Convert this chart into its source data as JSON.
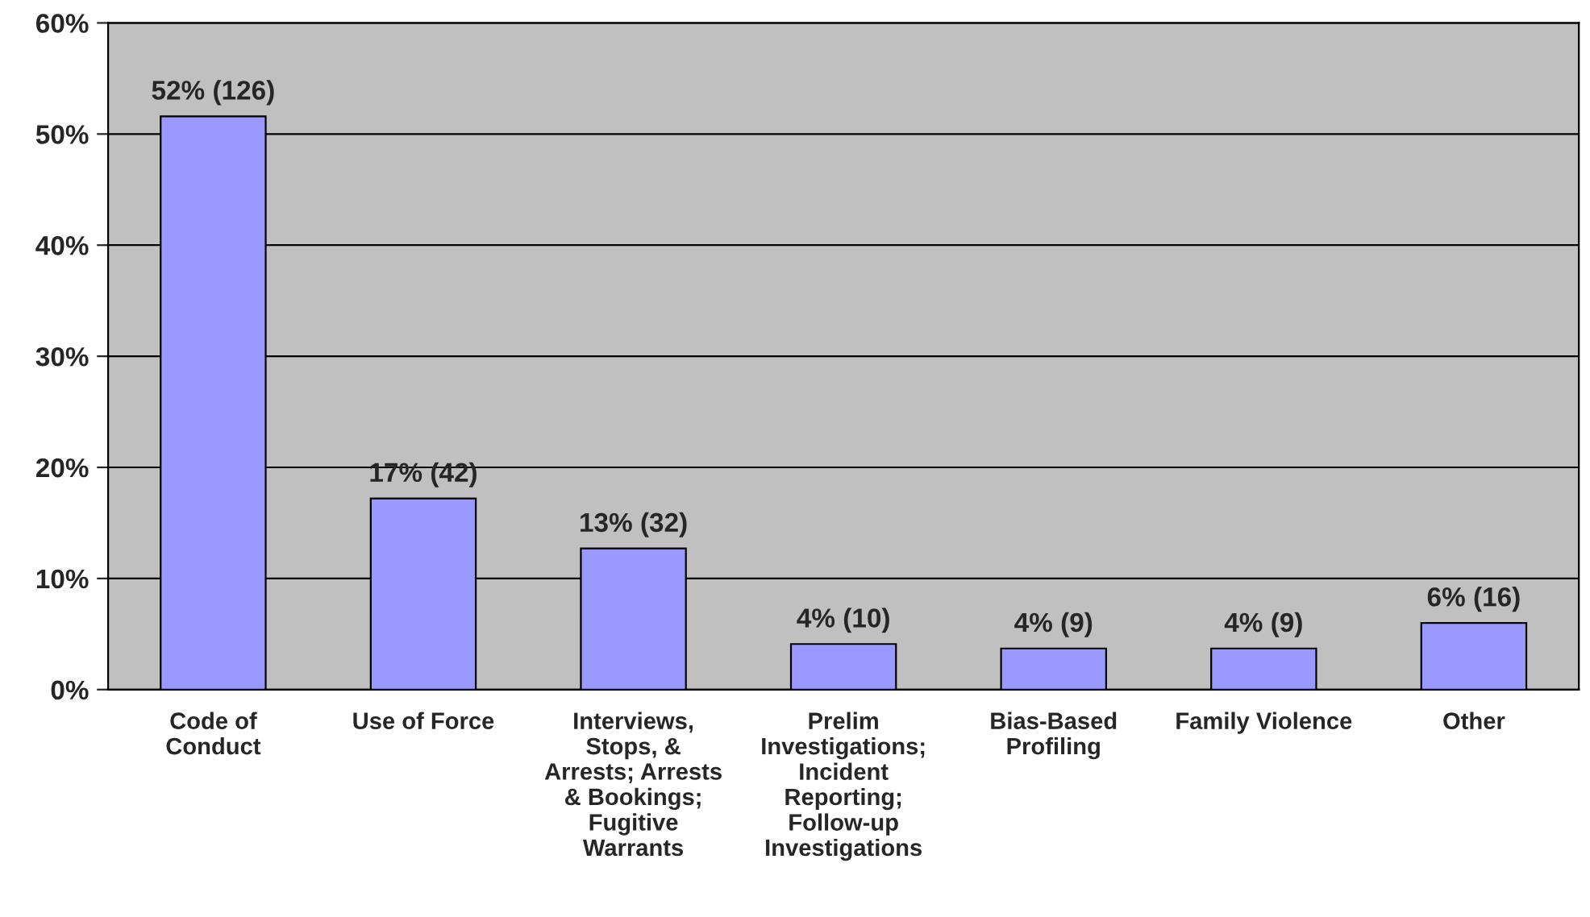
{
  "chart_data": {
    "type": "bar",
    "categories": [
      "Code of\nConduct",
      "Use of Force",
      "Interviews,\nStops, &\nArrests; Arrests\n& Bookings;\nFugitive\nWarrants",
      "Prelim\nInvestigations;\nIncident\nReporting;\nFollow-up\nInvestigations",
      "Bias-Based\nProfiling",
      "Family Violence",
      "Other"
    ],
    "values": [
      51.6,
      17.2,
      12.7,
      4.1,
      3.7,
      3.7,
      6.0
    ],
    "value_labels": [
      "52% (126)",
      "17% (42)",
      "13% (32)",
      "4% (10)",
      "4% (9)",
      "4% (9)",
      "6% (16)"
    ],
    "color": "#9999ff",
    "ylim": [
      0,
      60
    ],
    "yticks": [
      {
        "value": 0,
        "label": "0%"
      },
      {
        "value": 10,
        "label": "10%"
      },
      {
        "value": 20,
        "label": "20%"
      },
      {
        "value": 30,
        "label": "30%"
      },
      {
        "value": 40,
        "label": "40%"
      },
      {
        "value": 50,
        "label": "50%"
      },
      {
        "value": 60,
        "label": "60%"
      }
    ],
    "grid": "y",
    "legend": false
  }
}
